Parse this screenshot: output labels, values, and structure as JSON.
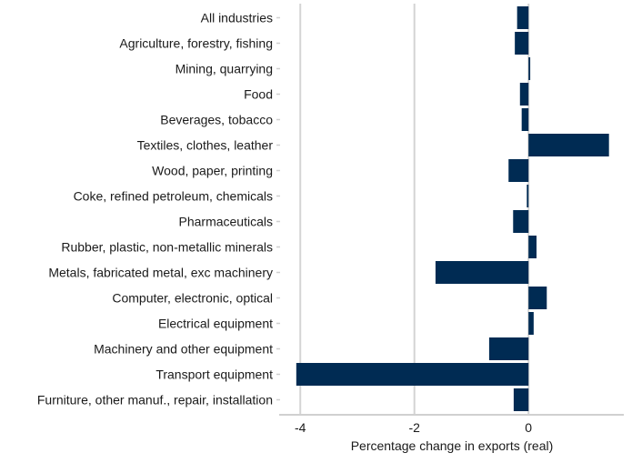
{
  "chart_data": {
    "type": "bar",
    "orientation": "horizontal",
    "title": "",
    "xlabel": "Percentage change in exports (real)",
    "ylabel": "",
    "xlim": [
      -4.37,
      1.67
    ],
    "xticks": [
      -4,
      -2,
      0
    ],
    "xtick_labels": [
      "-4",
      "-2",
      "0"
    ],
    "grid": "vertical",
    "legend": "none",
    "bar_color": "#002B53",
    "categories": [
      "All industries",
      "Agriculture, forestry, fishing",
      "Mining, quarrying",
      "Food",
      "Beverages, tobacco",
      "Textiles, clothes, leather",
      "Wood, paper, printing",
      "Coke, refined petroleum, chemicals",
      "Pharmaceuticals",
      "Rubber, plastic, non-metallic minerals",
      "Metals, fabricated metal, exc machinery",
      "Computer, electronic, optical",
      "Electrical equipment",
      "Machinery and other equipment",
      "Transport equipment",
      "Furniture, other manuf., repair, installation"
    ],
    "values": [
      -0.2,
      -0.24,
      0.03,
      -0.15,
      -0.12,
      1.41,
      -0.35,
      -0.03,
      -0.27,
      0.14,
      -1.63,
      0.32,
      0.09,
      -0.69,
      -4.07,
      -0.26
    ]
  }
}
